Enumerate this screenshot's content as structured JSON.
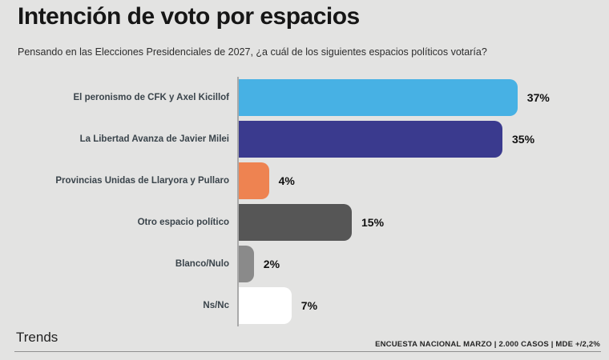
{
  "header": {
    "title": "Intención de voto por espacios",
    "subtitle": "Pensando en las Elecciones Presidenciales de 2027, ¿a cuál de los siguientes espacios políticos votaría?"
  },
  "chart_data": {
    "type": "bar",
    "orientation": "horizontal",
    "title": "Intención de voto por espacios",
    "categories": [
      "El peronismo de CFK y Axel Kicillof",
      "La Libertad Avanza de Javier Milei",
      "Provincias Unidas de Llaryora y Pullaro",
      "Otro espacio político",
      "Blanco/Nulo",
      "Ns/Nc"
    ],
    "values": [
      37,
      35,
      4,
      15,
      2,
      7
    ],
    "value_labels": [
      "37%",
      "35%",
      "4%",
      "15%",
      "2%",
      "7%"
    ],
    "bar_colors": [
      "#47b1e4",
      "#3a3a8e",
      "#ee8351",
      "#565656",
      "#8a8a8a",
      "#ffffff"
    ],
    "xlabel": "",
    "ylabel": "",
    "xlim": [
      0,
      40
    ],
    "grid": false,
    "legend": false,
    "data_labels": "outside-end"
  },
  "footer": {
    "brand": "Trends",
    "source": "ENCUESTA NACIONAL MARZO | 2.000 CASOS | MDE +/2,2%"
  },
  "colors": {
    "background": "#e3e3e2",
    "axis_line": "#a9a9a9",
    "divider": "#8f8f8f",
    "title_text": "#161616",
    "category_text": "#3a444b"
  }
}
